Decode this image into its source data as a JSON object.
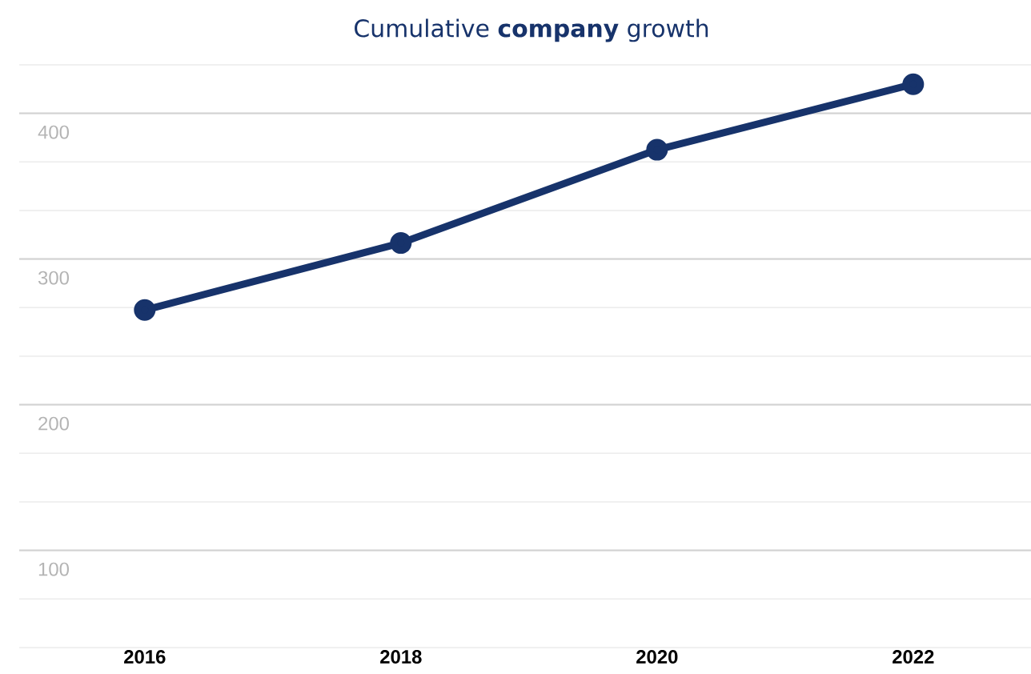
{
  "chart_data": {
    "type": "line",
    "title": "Cumulative **company** growth",
    "categories": [
      "2016",
      "2018",
      "2020",
      "2022"
    ],
    "series": [
      {
        "color": "#17336b",
        "values": [
          265,
          311,
          375,
          420
        ]
      }
    ],
    "ylim": [
      33.3,
      433.3
    ],
    "yticks": [
      {
        "value": 33.3,
        "label": null
      },
      {
        "value": 66.7,
        "label": null
      },
      100,
      {
        "value": 133.3,
        "label": null
      },
      {
        "value": 166.7,
        "label": null
      },
      200,
      {
        "value": 233.3,
        "label": null
      },
      {
        "value": 266.7,
        "label": null
      },
      300,
      {
        "value": 333.3,
        "label": null
      },
      {
        "value": 366.7,
        "label": null
      },
      400,
      {
        "value": 433.3,
        "label": null
      }
    ],
    "grid": "y",
    "marker": "circle",
    "line_style": "solid"
  }
}
